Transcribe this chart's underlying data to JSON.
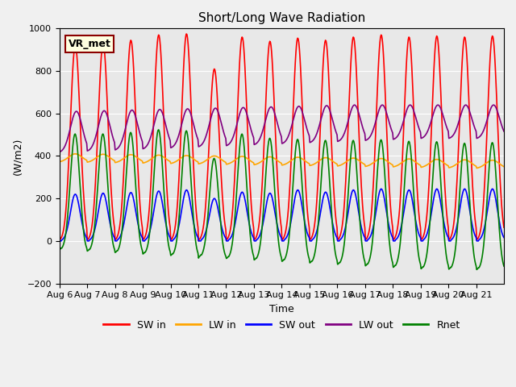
{
  "title": "Short/Long Wave Radiation",
  "ylabel": "(W/m2)",
  "xlabel": "Time",
  "ylim": [
    -200,
    1000
  ],
  "annotation": "VR_met",
  "legend": [
    "SW in",
    "LW in",
    "SW out",
    "LW out",
    "Rnet"
  ],
  "colors": [
    "red",
    "orange",
    "blue",
    "purple",
    "green"
  ],
  "bg_color": "#e8e8e8",
  "grid_color": "white",
  "xtick_labels": [
    "Aug 6",
    "Aug 7",
    "Aug 8",
    "Aug 9",
    "Aug 10",
    "Aug 11",
    "Aug 12",
    "Aug 13",
    "Aug 14",
    "Aug 15",
    "Aug 16",
    "Aug 17",
    "Aug 18",
    "Aug 19",
    "Aug 20",
    "Aug 21"
  ],
  "n_days": 16,
  "pts_per_day": 48
}
